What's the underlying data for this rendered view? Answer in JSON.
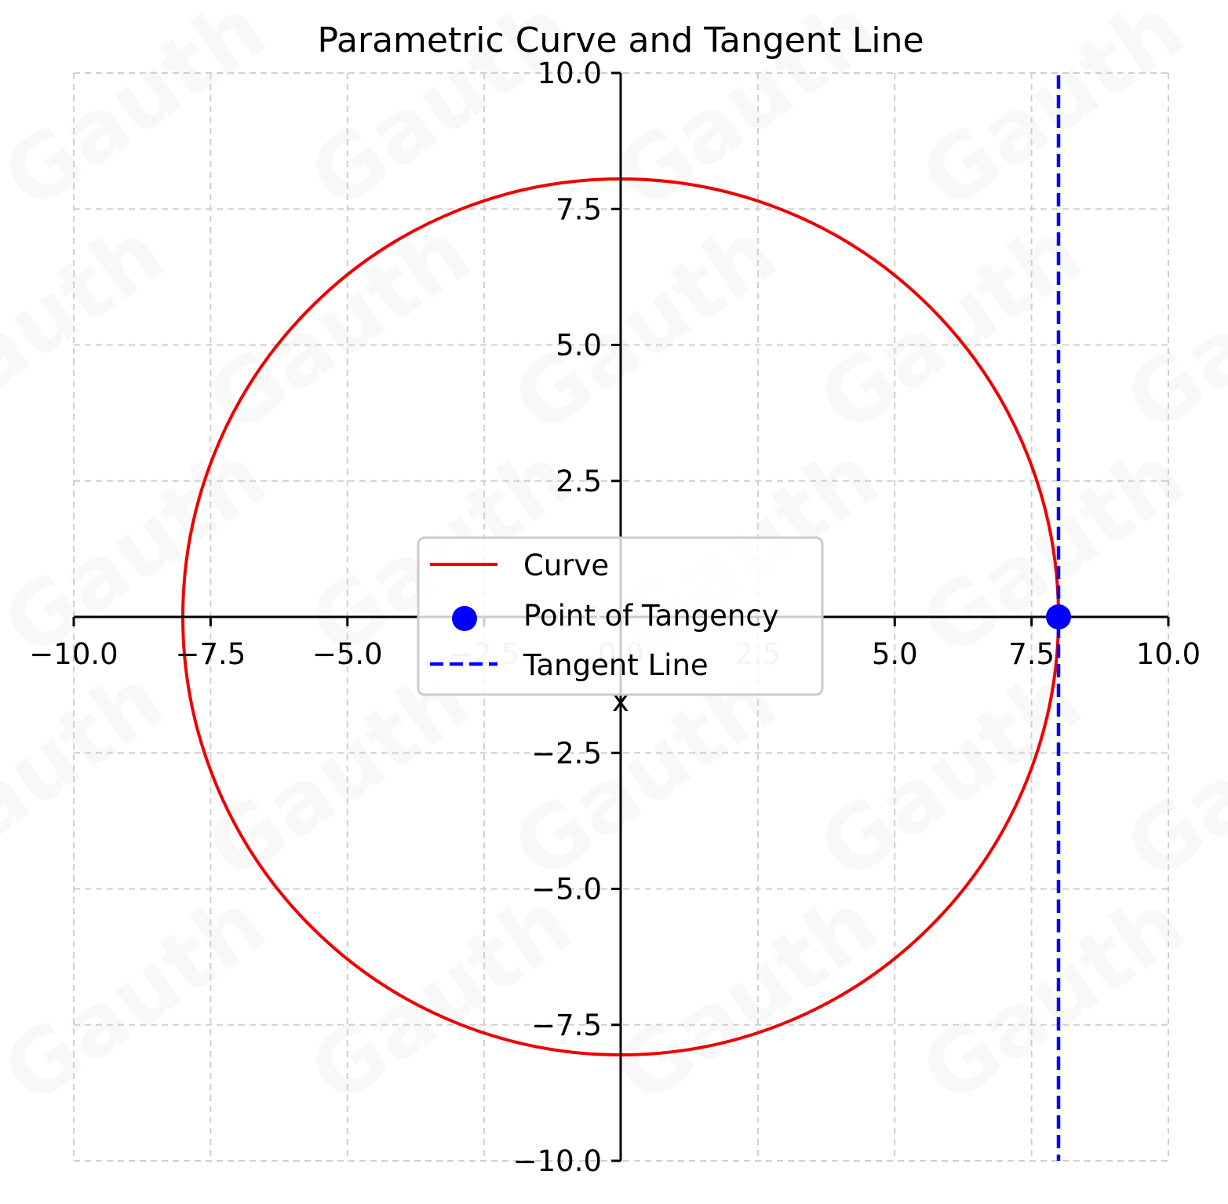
{
  "chart_data": {
    "type": "line",
    "title": "Parametric Curve and Tangent Line",
    "xlabel": "x",
    "ylabel": "",
    "xlim": [
      -10,
      10
    ],
    "ylim": [
      -10,
      10
    ],
    "grid": true,
    "legend_position": "center",
    "x_ticks": [
      "−10.0",
      "−7.5",
      "−5.0",
      "−2.5",
      "0.0",
      "2.5",
      "5.0",
      "7.5",
      "10.0"
    ],
    "y_ticks": [
      "10.0",
      "7.5",
      "5.0",
      "2.5",
      "0.0",
      "−2.5",
      "−5.0",
      "−7.5",
      "−10.0"
    ],
    "series": [
      {
        "name": "Curve",
        "kind": "line",
        "color": "#ee0000",
        "shape": "circle",
        "center": [
          0,
          0
        ],
        "radius": 8,
        "x": [
          8,
          5.657,
          0,
          -5.657,
          -8,
          -5.657,
          0,
          5.657,
          8
        ],
        "y": [
          0,
          5.657,
          8,
          5.657,
          0,
          -5.657,
          -8,
          -5.657,
          0
        ]
      },
      {
        "name": "Point of Tangency",
        "kind": "scatter",
        "color": "#0000ff",
        "x": [
          8
        ],
        "y": [
          0
        ]
      },
      {
        "name": "Tangent Line",
        "kind": "dashed-line",
        "color": "#0000ff",
        "x": [
          8,
          8
        ],
        "y": [
          -10,
          10
        ]
      }
    ]
  },
  "legend": {
    "items": [
      {
        "label": "Curve"
      },
      {
        "label": "Point of Tangency"
      },
      {
        "label": "Tangent Line"
      }
    ]
  },
  "watermark": "Gauth"
}
